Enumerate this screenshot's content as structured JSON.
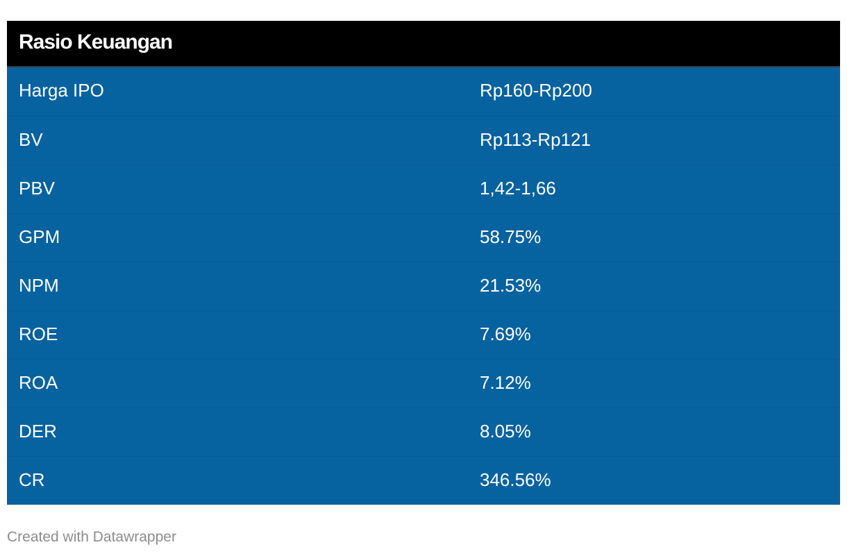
{
  "header": {
    "title": "Rasio Keuangan"
  },
  "table": {
    "rows": [
      [
        "Harga IPO",
        "Rp160-Rp200"
      ],
      [
        "BV",
        "Rp113-Rp121"
      ],
      [
        "PBV",
        "1,42-1,66"
      ],
      [
        "GPM",
        "58.75%"
      ],
      [
        "NPM",
        "21.53%"
      ],
      [
        "ROE",
        "7.69%"
      ],
      [
        "ROA",
        "7.12%"
      ],
      [
        "DER",
        "8.05%"
      ],
      [
        "CR",
        "346.56%"
      ]
    ]
  },
  "footer": {
    "credit": "Created with Datawrapper"
  }
}
